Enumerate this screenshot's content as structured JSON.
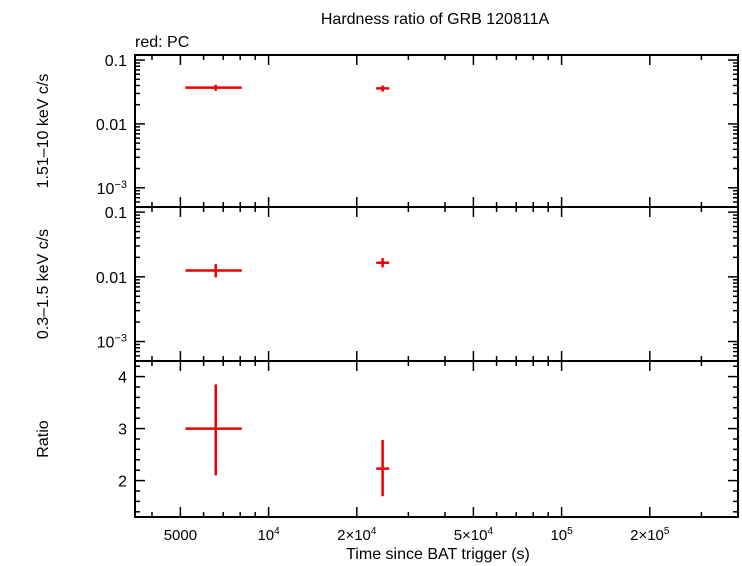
{
  "chart_data": {
    "title": "Hardness ratio of GRB 120811A",
    "legend": "red: PC",
    "xlabel": "Time since BAT trigger (s)",
    "xscale": "log",
    "xlim": [
      3500,
      400000
    ],
    "xticks": [
      {
        "v": 5000,
        "label": "5000",
        "sup": ""
      },
      {
        "v": 10000,
        "label": "10",
        "sup": "4"
      },
      {
        "v": 20000,
        "label": "2×10",
        "sup": "4"
      },
      {
        "v": 50000,
        "label": "5×10",
        "sup": "4"
      },
      {
        "v": 100000,
        "label": "10",
        "sup": "5"
      },
      {
        "v": 200000,
        "label": "2×10",
        "sup": "5"
      }
    ],
    "panels": [
      {
        "ylabel": "1.51–10 keV c/s",
        "yscale": "log",
        "ylim": [
          0.0005,
          0.12
        ],
        "yticks": [
          {
            "v": 0.1,
            "label": "0.1",
            "sup": ""
          },
          {
            "v": 0.01,
            "label": "0.01",
            "sup": ""
          },
          {
            "v": 0.001,
            "label": "10",
            "sup": "−3"
          }
        ],
        "series": [
          {
            "color": "#ee0000",
            "points": [
              {
                "x": 6600,
                "xlo": 5200,
                "xhi": 8100,
                "y": 0.037,
                "ylo": 0.033,
                "yhi": 0.041
              },
              {
                "x": 24500,
                "xlo": 23300,
                "xhi": 25800,
                "y": 0.036,
                "ylo": 0.032,
                "yhi": 0.04
              }
            ]
          }
        ]
      },
      {
        "ylabel": "0.3–1.5 keV c/s",
        "yscale": "log",
        "ylim": [
          0.0005,
          0.12
        ],
        "yticks": [
          {
            "v": 0.1,
            "label": "0.1",
            "sup": ""
          },
          {
            "v": 0.01,
            "label": "0.01",
            "sup": ""
          },
          {
            "v": 0.001,
            "label": "10",
            "sup": "−3"
          }
        ],
        "series": [
          {
            "color": "#ee0000",
            "points": [
              {
                "x": 6600,
                "xlo": 5200,
                "xhi": 8100,
                "y": 0.0125,
                "ylo": 0.0098,
                "yhi": 0.0157
              },
              {
                "x": 24500,
                "xlo": 23300,
                "xhi": 25800,
                "y": 0.0165,
                "ylo": 0.014,
                "yhi": 0.0195
              }
            ]
          }
        ]
      },
      {
        "ylabel": "Ratio",
        "yscale": "linear",
        "ylim": [
          1.3,
          4.3
        ],
        "yticks": [
          {
            "v": 4,
            "label": "4",
            "sup": ""
          },
          {
            "v": 3,
            "label": "3",
            "sup": ""
          },
          {
            "v": 2,
            "label": "2",
            "sup": ""
          }
        ],
        "series": [
          {
            "color": "#ee0000",
            "points": [
              {
                "x": 6600,
                "xlo": 5200,
                "xhi": 8100,
                "y": 3.0,
                "ylo": 2.1,
                "yhi": 3.85
              },
              {
                "x": 24500,
                "xlo": 23300,
                "xhi": 25800,
                "y": 2.23,
                "ylo": 1.7,
                "yhi": 2.78
              }
            ]
          }
        ]
      }
    ]
  }
}
